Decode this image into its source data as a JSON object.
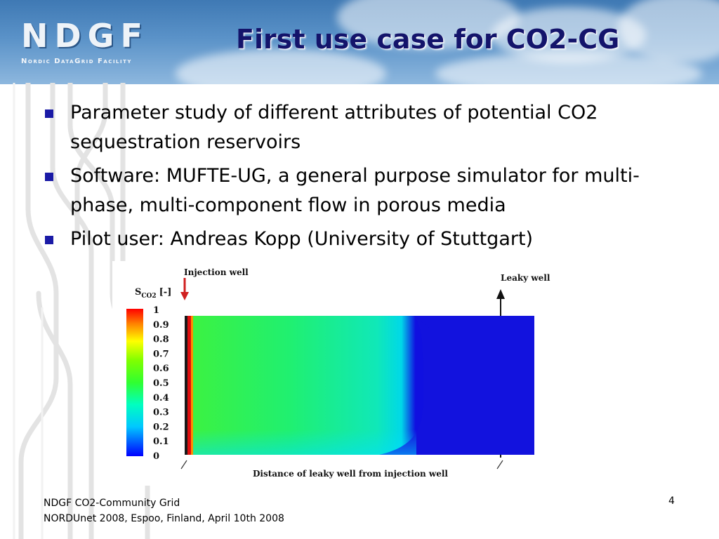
{
  "header": {
    "logo_main": "NDGF",
    "logo_sub": "Nordic DataGrid Facility",
    "title": "First use case for CO2-CG"
  },
  "bullets": [
    "Parameter study of different attributes of potential CO2 sequestration reservoirs",
    "Software: MUFTE-UG, a general purpose simulator for multi-phase, multi-component flow in porous media",
    "Pilot user: Andreas Kopp (University of Stuttgart)"
  ],
  "figure": {
    "injection_label": "Injection well",
    "leaky_label": "Leaky well",
    "colorbar_symbol": "S",
    "colorbar_subscript": "CO2",
    "colorbar_unit": "[-]",
    "colorbar_ticks": [
      "1",
      "0.9",
      "0.8",
      "0.7",
      "0.6",
      "0.5",
      "0.4",
      "0.3",
      "0.2",
      "0.1",
      "0"
    ],
    "xlabel": "Distance of leaky well from injection well"
  },
  "footer": {
    "line1": "NDGF CO2-Community Grid",
    "line2": "NORDUnet 2008, Espoo, Finland, April 10th 2008",
    "page": "4"
  }
}
